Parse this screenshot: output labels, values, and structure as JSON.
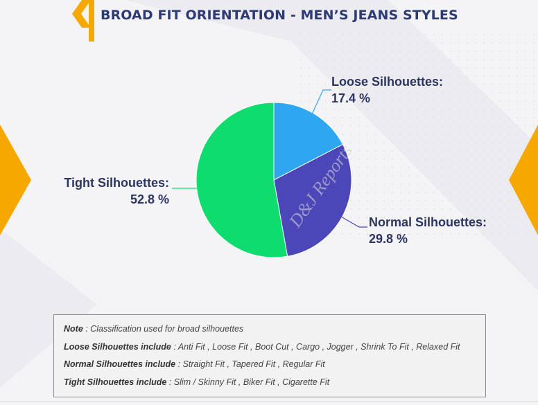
{
  "header": {
    "title": "BROAD FIT ORIENTATION - MEN’S JEANS STYLES"
  },
  "colors": {
    "loose": "#2fa6f0",
    "normal": "#4c47b8",
    "tight": "#0fdc6f",
    "accent": "#f5a800",
    "title": "#2e3a75"
  },
  "chart_data": {
    "type": "pie",
    "title": "BROAD FIT ORIENTATION - MEN’S JEANS STYLES",
    "slices": [
      {
        "label": "Loose Silhouettes:",
        "value": 17.4,
        "display": "17.4 %"
      },
      {
        "label": "Normal Silhouettes:",
        "value": 29.8,
        "display": "29.8 %"
      },
      {
        "label": "Tight Silhouettes:",
        "value": 52.8,
        "display": "52.8 %"
      }
    ]
  },
  "note": {
    "lines": [
      {
        "lead": "Note",
        "text": " : Classification used for broad silhouettes"
      },
      {
        "lead": "Loose Silhouettes include",
        "text": " : Anti Fit , Loose Fit , Boot Cut , Cargo , Jogger , Shrink To Fit , Relaxed Fit"
      },
      {
        "lead": "Normal Silhouettes include",
        "text": " : Straight Fit , Tapered Fit , Regular Fit"
      },
      {
        "lead": "Tight Silhouettes include",
        "text": " : Slim / Skinny Fit , Biker Fit , Cigarette Fit"
      }
    ]
  }
}
